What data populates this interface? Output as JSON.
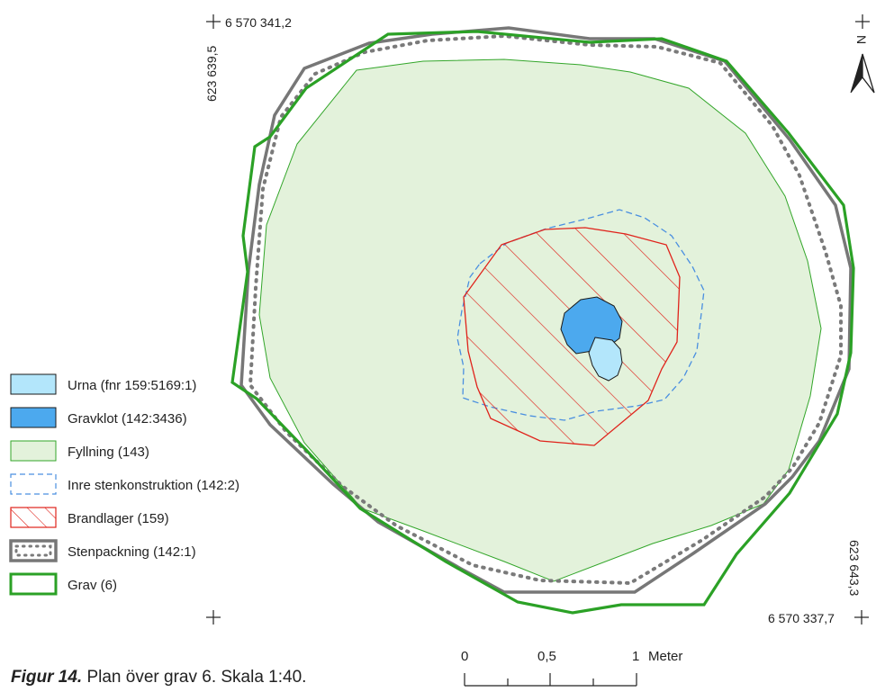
{
  "coordinates": {
    "top_left_north": "6 570 341,2",
    "top_left_east": "623 639,5",
    "bottom_right_north": "6 570 337,7",
    "bottom_right_east": "623 643,3"
  },
  "north_arrow": {
    "label": "N",
    "icon": "north-arrow-icon"
  },
  "legend": [
    {
      "key": "urna",
      "label": "Urna (fnr 159:5169:1)",
      "fill": "#b3e6fb",
      "stroke": "#1a1a1a"
    },
    {
      "key": "gravklot",
      "label": "Gravklot (142:3436)",
      "fill": "#4ca9ee",
      "stroke": "#1a1a1a"
    },
    {
      "key": "fyllning",
      "label": "Fyllning (143)",
      "fill": "#e3f2db",
      "stroke": "#33a62a"
    },
    {
      "key": "inre",
      "label": "Inre stenkonstruktion (142:2)",
      "fill": "none",
      "stroke": "#4a8fe0"
    },
    {
      "key": "brandlager",
      "label": "Brandlager (159)",
      "fill": "none",
      "stroke": "#e0231b"
    },
    {
      "key": "stenpackning",
      "label": "Stenpackning (142:1)",
      "fill": "none",
      "stroke": "#777777"
    },
    {
      "key": "grav",
      "label": "Grav (6)",
      "fill": "none",
      "stroke": "#2ba126"
    }
  ],
  "scale_bar": {
    "labels": [
      "0",
      "0,5",
      "1"
    ],
    "unit": "Meter"
  },
  "caption": {
    "label": "Figur 14.",
    "text": " Plan över grav 6. Skala 1:40."
  }
}
